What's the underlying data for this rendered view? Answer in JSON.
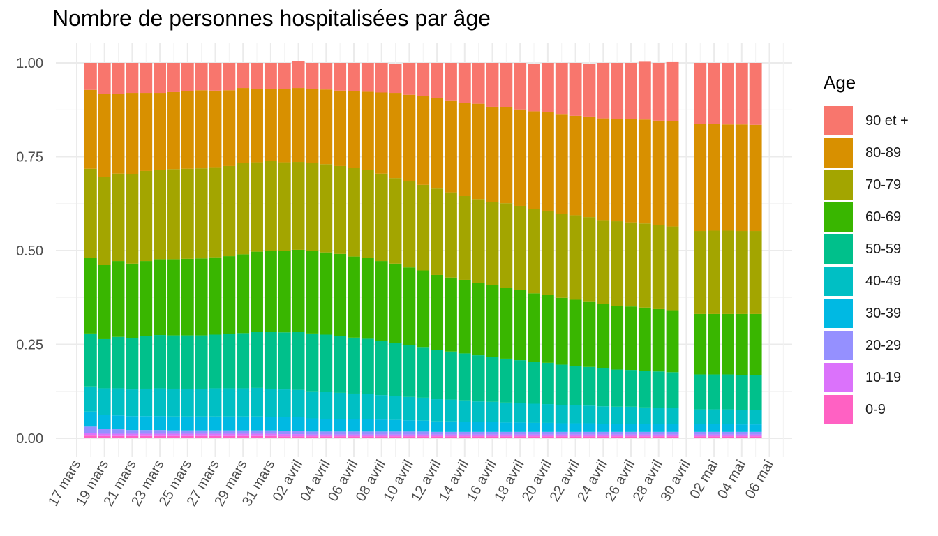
{
  "chart_data": {
    "type": "bar",
    "stacked": true,
    "title": "Nombre de personnes hospitalisées par âge",
    "xlabel": "",
    "ylabel": "",
    "ylim": [
      0,
      1
    ],
    "y_ticks": [
      "0.00",
      "0.25",
      "0.50",
      "0.75",
      "1.00"
    ],
    "x_tick_labels": [
      "17 mars",
      "19 mars",
      "21 mars",
      "23 mars",
      "25 mars",
      "27 mars",
      "29 mars",
      "31 mars",
      "02 avril",
      "04 avril",
      "06 avril",
      "08 avril",
      "10 avril",
      "12 avril",
      "14 avril",
      "16 avril",
      "18 avril",
      "20 avril",
      "22 avril",
      "24 avril",
      "26 avril",
      "28 avril",
      "30 avril",
      "02 mai",
      "04 mai",
      "06 mai"
    ],
    "categories": [
      "18 mars",
      "19 mars",
      "20 mars",
      "21 mars",
      "22 mars",
      "23 mars",
      "24 mars",
      "25 mars",
      "26 mars",
      "27 mars",
      "28 mars",
      "29 mars",
      "30 mars",
      "31 mars",
      "01 avril",
      "02 avril",
      "03 avril",
      "04 avril",
      "05 avril",
      "06 avril",
      "07 avril",
      "08 avril",
      "09 avril",
      "10 avril",
      "11 avril",
      "12 avril",
      "13 avril",
      "14 avril",
      "15 avril",
      "16 avril",
      "17 avril",
      "18 avril",
      "19 avril",
      "20 avril",
      "21 avril",
      "22 avril",
      "23 avril",
      "24 avril",
      "25 avril",
      "26 avril",
      "27 avril",
      "28 avril",
      "29 avril",
      "01 mai",
      "02 mai",
      "03 mai",
      "04 mai",
      "05 mai"
    ],
    "grid": true,
    "legend_position": "right",
    "legend_title": "Age",
    "series": [
      {
        "name": "0-9",
        "color": "#FF61C3",
        "values": [
          0.007,
          0.006,
          0.006,
          0.006,
          0.006,
          0.006,
          0.006,
          0.006,
          0.006,
          0.006,
          0.006,
          0.006,
          0.006,
          0.006,
          0.005,
          0.005,
          0.005,
          0.005,
          0.005,
          0.005,
          0.005,
          0.005,
          0.005,
          0.005,
          0.005,
          0.005,
          0.005,
          0.005,
          0.005,
          0.005,
          0.005,
          0.005,
          0.005,
          0.005,
          0.005,
          0.005,
          0.005,
          0.005,
          0.005,
          0.005,
          0.005,
          0.005,
          0.005,
          0.005,
          0.005,
          0.005,
          0.005,
          0.005
        ]
      },
      {
        "name": "10-19",
        "color": "#DB72FB",
        "values": [
          0.006,
          0.006,
          0.006,
          0.006,
          0.006,
          0.006,
          0.006,
          0.006,
          0.006,
          0.006,
          0.006,
          0.006,
          0.006,
          0.006,
          0.006,
          0.006,
          0.005,
          0.005,
          0.005,
          0.005,
          0.005,
          0.005,
          0.005,
          0.005,
          0.005,
          0.005,
          0.005,
          0.005,
          0.005,
          0.005,
          0.005,
          0.005,
          0.005,
          0.005,
          0.005,
          0.005,
          0.005,
          0.005,
          0.005,
          0.005,
          0.005,
          0.005,
          0.005,
          0.005,
          0.005,
          0.005,
          0.005,
          0.005
        ]
      },
      {
        "name": "20-29",
        "color": "#9590FF",
        "values": [
          0.018,
          0.013,
          0.012,
          0.01,
          0.01,
          0.01,
          0.009,
          0.009,
          0.009,
          0.009,
          0.009,
          0.009,
          0.009,
          0.009,
          0.009,
          0.009,
          0.008,
          0.008,
          0.008,
          0.008,
          0.008,
          0.008,
          0.008,
          0.008,
          0.008,
          0.007,
          0.007,
          0.007,
          0.007,
          0.007,
          0.007,
          0.007,
          0.007,
          0.007,
          0.007,
          0.007,
          0.007,
          0.007,
          0.007,
          0.007,
          0.007,
          0.007,
          0.007,
          0.007,
          0.007,
          0.007,
          0.007,
          0.007
        ]
      },
      {
        "name": "30-39",
        "color": "#00B9E3",
        "values": [
          0.04,
          0.038,
          0.037,
          0.037,
          0.037,
          0.037,
          0.037,
          0.037,
          0.037,
          0.037,
          0.037,
          0.037,
          0.037,
          0.036,
          0.036,
          0.036,
          0.035,
          0.034,
          0.034,
          0.033,
          0.033,
          0.032,
          0.031,
          0.03,
          0.029,
          0.028,
          0.028,
          0.027,
          0.026,
          0.026,
          0.025,
          0.025,
          0.024,
          0.024,
          0.023,
          0.023,
          0.023,
          0.022,
          0.022,
          0.022,
          0.021,
          0.021,
          0.021,
          0.021,
          0.021,
          0.021,
          0.02,
          0.02
        ]
      },
      {
        "name": "40-49",
        "color": "#00BFC4",
        "values": [
          0.067,
          0.07,
          0.072,
          0.071,
          0.073,
          0.074,
          0.074,
          0.074,
          0.074,
          0.075,
          0.075,
          0.075,
          0.076,
          0.075,
          0.074,
          0.073,
          0.072,
          0.071,
          0.069,
          0.068,
          0.067,
          0.065,
          0.064,
          0.062,
          0.061,
          0.059,
          0.058,
          0.057,
          0.055,
          0.054,
          0.053,
          0.052,
          0.051,
          0.05,
          0.049,
          0.048,
          0.047,
          0.046,
          0.045,
          0.045,
          0.044,
          0.043,
          0.042,
          0.039,
          0.039,
          0.039,
          0.039,
          0.039
        ]
      },
      {
        "name": "50-59",
        "color": "#00C08B",
        "values": [
          0.141,
          0.131,
          0.137,
          0.137,
          0.14,
          0.142,
          0.142,
          0.142,
          0.142,
          0.143,
          0.145,
          0.147,
          0.15,
          0.151,
          0.152,
          0.154,
          0.154,
          0.153,
          0.152,
          0.149,
          0.147,
          0.145,
          0.141,
          0.138,
          0.135,
          0.131,
          0.128,
          0.125,
          0.123,
          0.12,
          0.117,
          0.114,
          0.112,
          0.11,
          0.107,
          0.105,
          0.103,
          0.101,
          0.099,
          0.098,
          0.097,
          0.097,
          0.096,
          0.093,
          0.093,
          0.093,
          0.093,
          0.093
        ]
      },
      {
        "name": "60-69",
        "color": "#39B600",
        "values": [
          0.201,
          0.198,
          0.202,
          0.198,
          0.2,
          0.202,
          0.203,
          0.204,
          0.205,
          0.206,
          0.207,
          0.21,
          0.213,
          0.217,
          0.217,
          0.219,
          0.22,
          0.219,
          0.218,
          0.216,
          0.215,
          0.212,
          0.211,
          0.207,
          0.204,
          0.2,
          0.197,
          0.196,
          0.192,
          0.191,
          0.189,
          0.187,
          0.182,
          0.181,
          0.178,
          0.176,
          0.173,
          0.171,
          0.17,
          0.169,
          0.169,
          0.166,
          0.165,
          0.161,
          0.161,
          0.161,
          0.162,
          0.162
        ]
      },
      {
        "name": "70-79",
        "color": "#A3A500",
        "values": [
          0.238,
          0.235,
          0.233,
          0.238,
          0.24,
          0.238,
          0.24,
          0.24,
          0.24,
          0.24,
          0.24,
          0.243,
          0.238,
          0.238,
          0.236,
          0.234,
          0.235,
          0.235,
          0.234,
          0.237,
          0.234,
          0.233,
          0.228,
          0.229,
          0.228,
          0.23,
          0.227,
          0.223,
          0.224,
          0.222,
          0.225,
          0.224,
          0.225,
          0.224,
          0.224,
          0.225,
          0.226,
          0.224,
          0.225,
          0.224,
          0.224,
          0.224,
          0.223,
          0.221,
          0.222,
          0.222,
          0.221,
          0.221
        ]
      },
      {
        "name": "80-89",
        "color": "#D89000",
        "values": [
          0.21,
          0.221,
          0.213,
          0.217,
          0.208,
          0.205,
          0.205,
          0.207,
          0.208,
          0.204,
          0.202,
          0.2,
          0.196,
          0.193,
          0.195,
          0.197,
          0.197,
          0.199,
          0.201,
          0.204,
          0.209,
          0.216,
          0.227,
          0.231,
          0.237,
          0.242,
          0.245,
          0.248,
          0.254,
          0.253,
          0.256,
          0.257,
          0.26,
          0.262,
          0.264,
          0.265,
          0.268,
          0.271,
          0.272,
          0.275,
          0.277,
          0.278,
          0.28,
          0.285,
          0.285,
          0.283,
          0.284,
          0.283
        ]
      },
      {
        "name": "90 et +",
        "color": "#F8766D",
        "values": [
          0.072,
          0.082,
          0.082,
          0.08,
          0.08,
          0.08,
          0.078,
          0.075,
          0.073,
          0.074,
          0.073,
          0.067,
          0.069,
          0.069,
          0.07,
          0.072,
          0.069,
          0.071,
          0.074,
          0.075,
          0.077,
          0.079,
          0.078,
          0.085,
          0.088,
          0.093,
          0.1,
          0.107,
          0.109,
          0.117,
          0.118,
          0.124,
          0.126,
          0.132,
          0.138,
          0.141,
          0.141,
          0.148,
          0.15,
          0.15,
          0.154,
          0.154,
          0.158,
          0.163,
          0.162,
          0.164,
          0.164,
          0.165
        ]
      }
    ]
  }
}
